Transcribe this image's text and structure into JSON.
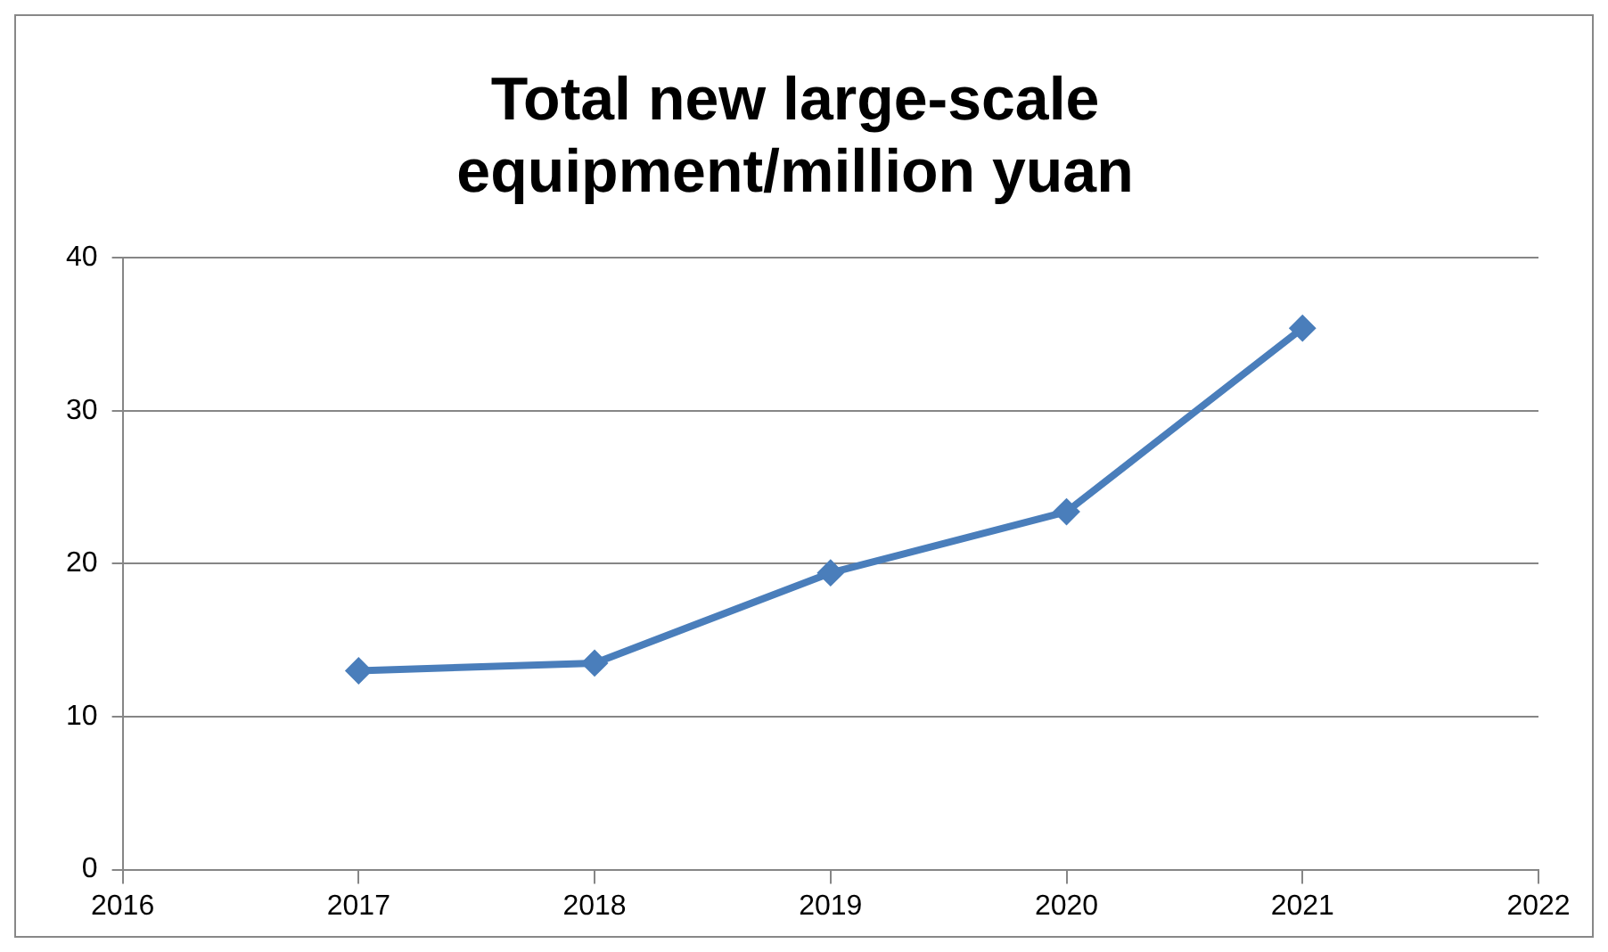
{
  "chart_data": {
    "type": "line",
    "title": [
      "Total new large-scale",
      "equipment/million yuan"
    ],
    "x": [
      2017,
      2018,
      2019,
      2020,
      2021
    ],
    "series": [
      {
        "color": "#4a7ebb",
        "values": [
          13,
          13.5,
          19.4,
          23.4,
          35.4
        ]
      }
    ],
    "xlim": [
      2016,
      2022
    ],
    "xticks": [
      2016,
      2017,
      2018,
      2019,
      2020,
      2021,
      2022
    ],
    "ylim": [
      0,
      40
    ],
    "yticks": [
      0,
      10,
      20,
      30,
      40
    ],
    "grid": "y",
    "legend": false,
    "marker": "diamond",
    "line_style": "solid"
  }
}
